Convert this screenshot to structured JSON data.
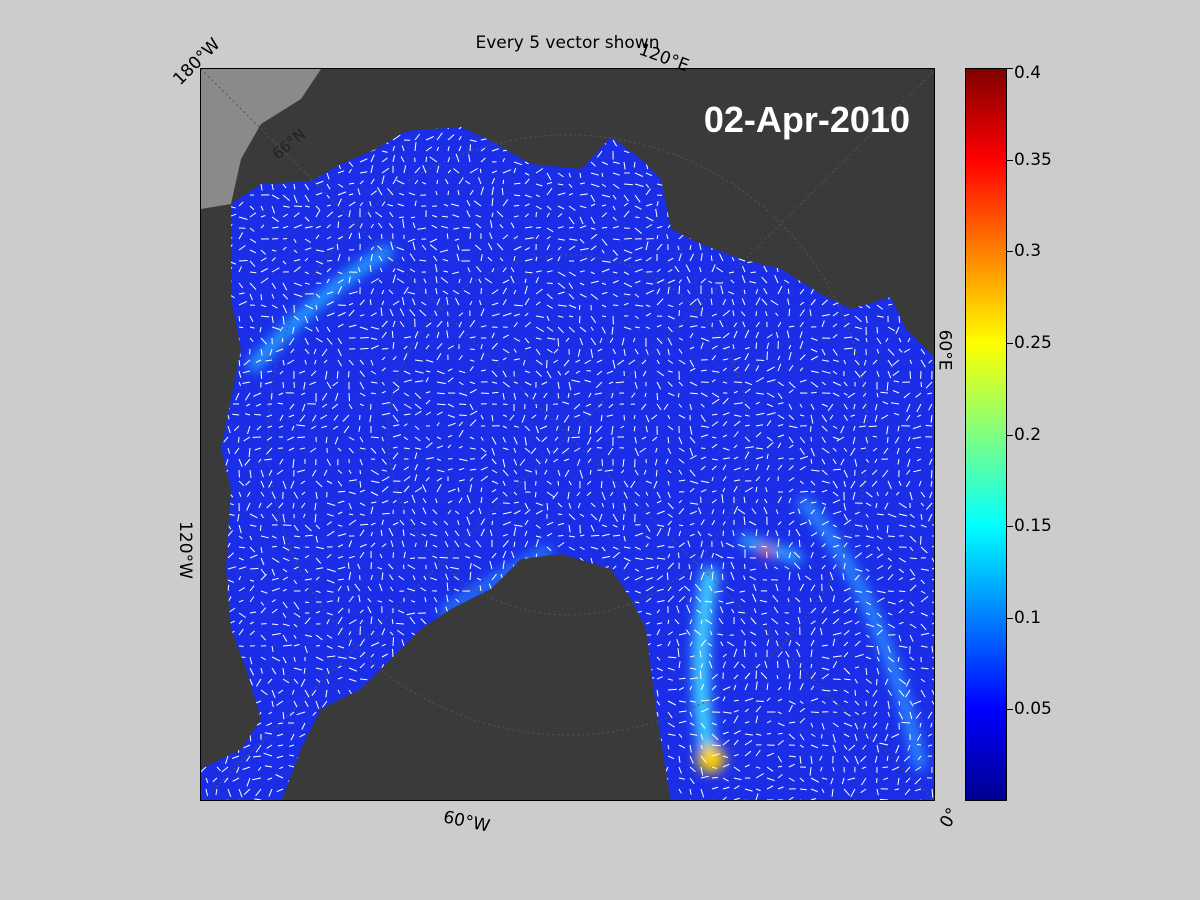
{
  "figure": {
    "title": "Every 5 vector shown",
    "date": "02-Apr-2010"
  },
  "map_labels": {
    "lon_180w": "180°W",
    "lon_120e": "120°E",
    "lon_60e": "60°E",
    "lon_120w": "120°W",
    "lon_60w": "60°W",
    "lon_0": "0°",
    "lat_66n": "66°N"
  },
  "colorbar": {
    "min": 0,
    "max": 0.4,
    "ticks": [
      "0.4",
      "0.35",
      "0.3",
      "0.25",
      "0.2",
      "0.15",
      "0.1",
      "0.05"
    ],
    "colors": [
      "#00008f",
      "#0000ff",
      "#0080ff",
      "#00ffff",
      "#80ff80",
      "#ffff00",
      "#ff8000",
      "#ff0000",
      "#800000"
    ]
  },
  "colors": {
    "ocean": "#1a2ee8",
    "land": "#3a3a3a",
    "ice_shelf": "#8a8a8a",
    "vectors": "#ffffff"
  }
}
